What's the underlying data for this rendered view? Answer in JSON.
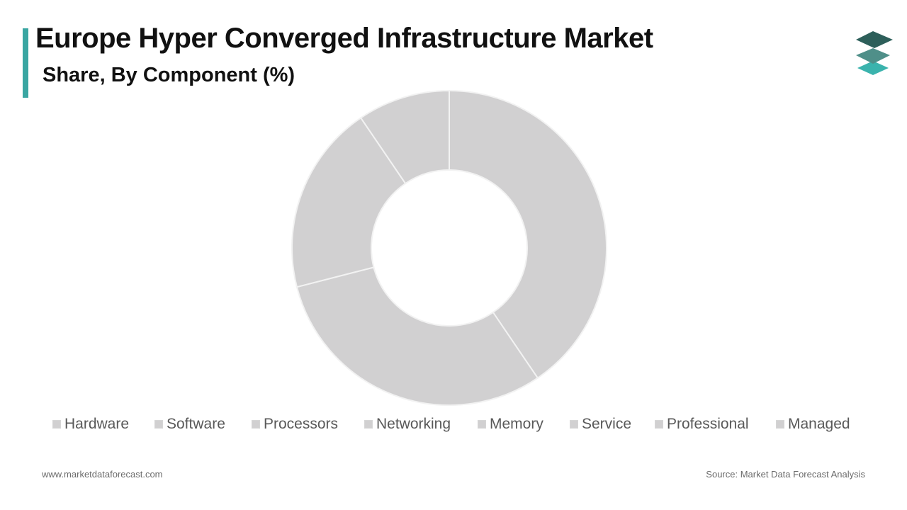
{
  "header": {
    "title": "Europe Hyper Converged Infrastructure Market",
    "subtitle": "Share, By Component (%)",
    "accent_color": "#3aa6a2"
  },
  "logo": {
    "icon": "stacked-layers-icon",
    "colors": [
      "#2d5f5a",
      "#4f8f89",
      "#3ab3ad"
    ]
  },
  "chart_data": {
    "type": "pie",
    "donut": true,
    "categories": [
      "Hardware",
      "Software",
      "Processors",
      "Networking",
      "Memory",
      "Service",
      "Professional",
      "Managed"
    ],
    "series": [
      {
        "values": [
          40.5,
          30.5,
          19.5,
          9.5,
          0,
          0,
          0,
          0
        ]
      }
    ],
    "slice_color": "#d1d0d1",
    "slice_border_color": "#f2f2f2",
    "start_angle_deg": 0,
    "legend_position": "bottom"
  },
  "footer": {
    "website": "www.marketdataforecast.com",
    "source": "Source: Market Data Forecast Analysis"
  }
}
